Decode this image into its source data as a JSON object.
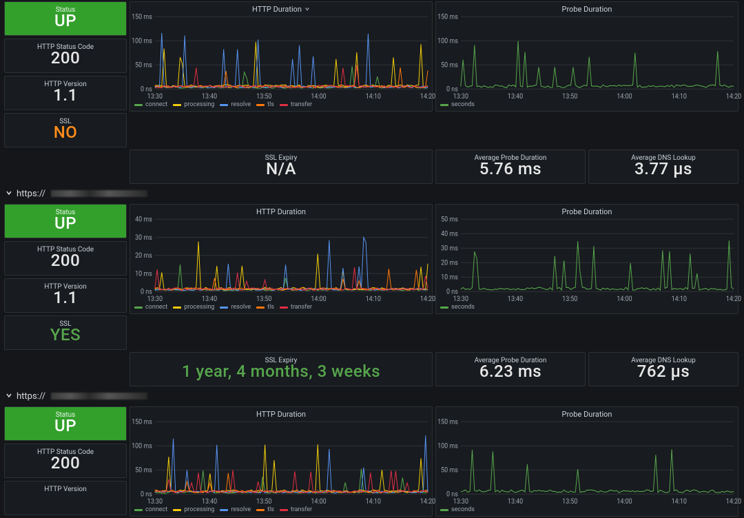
{
  "theme": {
    "bg": "#141619",
    "panel_bg": "#181b1f",
    "panel_border": "#2c3235",
    "text": "#d8d9da",
    "muted": "#9fa7b3",
    "grid": "#2c3235"
  },
  "series_colors": {
    "connect": "#56a64c",
    "processing": "#f2cc0c",
    "resolve": "#5794f2",
    "tls": "#ff780a",
    "transfer": "#e02f44",
    "seconds": "#56a64c"
  },
  "x_ticks": [
    "13:30",
    "13:40",
    "13:50",
    "14:00",
    "14:10",
    "14:20"
  ],
  "sections": [
    {
      "header": null,
      "stats_left": [
        {
          "label": "Status",
          "value": "UP",
          "style": "green-bg"
        },
        {
          "label": "HTTP Status Code",
          "value": "200",
          "style": "white"
        },
        {
          "label": "HTTP Version",
          "value": "1.1",
          "style": "white"
        },
        {
          "label": "SSL",
          "value": "NO",
          "style": "orange-text"
        }
      ],
      "http_chart": {
        "title": "HTTP Duration",
        "ylim": 150,
        "yunit": "ms",
        "yticks": [
          0,
          50,
          100,
          150
        ],
        "ytick_unit_zero": "0 ns",
        "legend": [
          "connect",
          "processing",
          "resolve",
          "tls",
          "transfer"
        ],
        "caret": true
      },
      "probe_chart": {
        "title": "Probe Duration",
        "ylim": 150,
        "yunit": "ms",
        "yticks": [
          0,
          50,
          100,
          150
        ],
        "ytick_unit_zero": "0 ns",
        "legend": [
          "seconds"
        ]
      },
      "bottom": [
        {
          "label": "SSL Expiry",
          "value": "N/A",
          "style": "white",
          "span": 2
        },
        {
          "label": "Average Probe Duration",
          "value": "5.76 ms",
          "style": "white"
        },
        {
          "label": "Average DNS Lookup",
          "value": "3.77 µs",
          "style": "white"
        }
      ],
      "seed": 1
    },
    {
      "header": "https://",
      "stats_left": [
        {
          "label": "Status",
          "value": "UP",
          "style": "green-bg"
        },
        {
          "label": "HTTP Status Code",
          "value": "200",
          "style": "white"
        },
        {
          "label": "HTTP Version",
          "value": "1.1",
          "style": "white"
        },
        {
          "label": "SSL",
          "value": "YES",
          "style": "green-text"
        }
      ],
      "http_chart": {
        "title": "HTTP Duration",
        "ylim": 40,
        "yunit": "ms",
        "yticks": [
          0,
          10,
          20,
          30,
          40
        ],
        "ytick_unit_zero": "0 ns",
        "legend": [
          "connect",
          "processing",
          "resolve",
          "tls",
          "transfer"
        ]
      },
      "probe_chart": {
        "title": "Probe Duration",
        "ylim": 50,
        "yunit": "ms",
        "yticks": [
          0,
          10,
          20,
          30,
          40,
          50
        ],
        "ytick_unit_zero": "0 ns",
        "legend": [
          "seconds"
        ]
      },
      "bottom": [
        {
          "label": "SSL Expiry",
          "value": "1 year, 4 months, 3 weeks",
          "style": "green-text",
          "span": 2
        },
        {
          "label": "Average Probe Duration",
          "value": "6.23 ms",
          "style": "white"
        },
        {
          "label": "Average DNS Lookup",
          "value": "762 µs",
          "style": "white"
        }
      ],
      "seed": 2
    },
    {
      "header": "https://",
      "stats_left": [
        {
          "label": "Status",
          "value": "UP",
          "style": "green-bg"
        },
        {
          "label": "HTTP Status Code",
          "value": "200",
          "style": "white"
        },
        {
          "label": "HTTP Version",
          "value": "",
          "style": "white"
        }
      ],
      "http_chart": {
        "title": "HTTP Duration",
        "ylim": 150,
        "yunit": "ms",
        "yticks": [
          0,
          50,
          100,
          150
        ],
        "ytick_unit_zero": "0 ns",
        "legend": [
          "connect",
          "processing",
          "resolve",
          "tls",
          "transfer"
        ]
      },
      "probe_chart": {
        "title": "Probe Duration",
        "ylim": 150,
        "yunit": "ms",
        "yticks": [
          0,
          50,
          100,
          150
        ],
        "ytick_unit_zero": "0 ns",
        "legend": [
          "seconds"
        ]
      },
      "bottom": [],
      "seed": 3,
      "partial": true
    }
  ]
}
